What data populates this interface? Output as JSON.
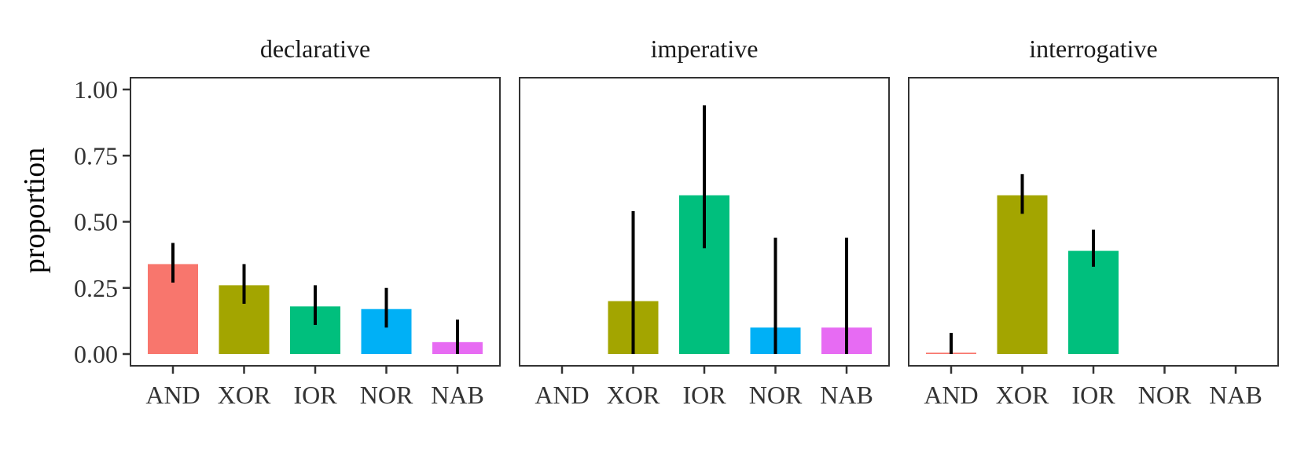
{
  "chart_data": {
    "type": "bar",
    "ylabel": "proportion",
    "xlabel": "",
    "ylim": [
      0,
      1.04
    ],
    "yticks": [
      0,
      0.25,
      0.5,
      0.75,
      1.0
    ],
    "ytick_labels": [
      "0.00",
      "0.25",
      "0.50",
      "0.75",
      "1.00"
    ],
    "categories": [
      "AND",
      "XOR",
      "IOR",
      "NOR",
      "NAB"
    ],
    "colors": {
      "AND": "#F8766D",
      "XOR": "#A3A500",
      "IOR": "#00BF7D",
      "NOR": "#00B0F6",
      "NAB": "#E76BF3"
    },
    "grid": false,
    "legend": "none",
    "facets": [
      {
        "title": "declarative",
        "values": [
          0.34,
          0.26,
          0.18,
          0.17,
          0.045
        ],
        "error_low": [
          0.27,
          0.19,
          0.11,
          0.1,
          0.0
        ],
        "error_high": [
          0.42,
          0.34,
          0.26,
          0.25,
          0.13
        ]
      },
      {
        "title": "imperative",
        "values": [
          null,
          0.2,
          0.6,
          0.1,
          0.1
        ],
        "error_low": [
          null,
          0.0,
          0.4,
          0.0,
          0.0
        ],
        "error_high": [
          null,
          0.54,
          0.94,
          0.44,
          0.44
        ]
      },
      {
        "title": "interrogative",
        "values": [
          0.005,
          0.6,
          0.39,
          null,
          null
        ],
        "error_low": [
          0.0,
          0.53,
          0.33,
          null,
          null
        ],
        "error_high": [
          0.08,
          0.68,
          0.47,
          null,
          null
        ]
      }
    ]
  }
}
